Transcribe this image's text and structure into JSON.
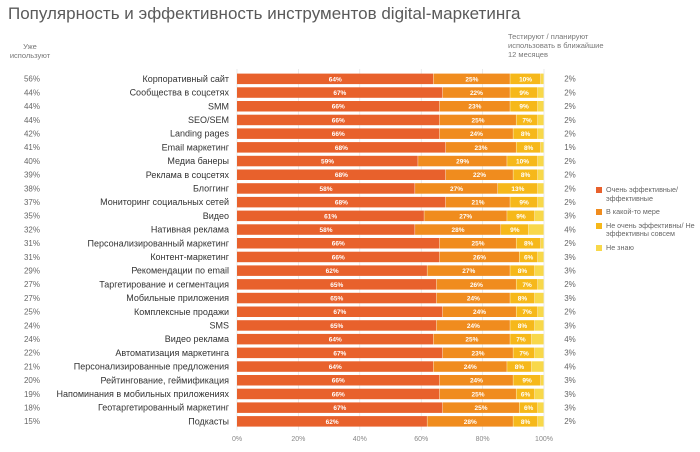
{
  "title": "Популярность и эффективность инструментов digital-маркетинга",
  "header_left": "Уже используют",
  "header_right": "Тестируют / планируют использовать в ближайшие 12 месяцев",
  "colors": {
    "very_effective": "#e8612c",
    "somewhat": "#f08c1e",
    "not_effective": "#f6b81a",
    "dont_know": "#f8d84a",
    "text": "#333333",
    "pct_text": "#ffffff",
    "grid": "#dddddd",
    "side_text": "#666666"
  },
  "chart_data": {
    "type": "bar",
    "orientation": "horizontal",
    "stacked": true,
    "title": "Популярность и эффективность инструментов digital-маркетинга",
    "xlim": [
      0,
      100
    ],
    "x_ticks": [
      "0%",
      "20%",
      "40%",
      "60%",
      "80%",
      "100%"
    ],
    "legend_position": "right",
    "categories": [
      "Корпоративный сайт",
      "Сообщества в соцсетях",
      "SMM",
      "SEO/SEM",
      "Landing pages",
      "Email маркетинг",
      "Медиа банеры",
      "Реклама в соцсетях",
      "Блоггинг",
      "Мониторинг социальных сетей",
      "Видео",
      "Нативная реклама",
      "Персонализированный маркетинг",
      "Контент-маркетинг",
      "Рекомендации по email",
      "Таргетирование и сегментация",
      "Мобильные приложения",
      "Комплексные продажи",
      "SMS",
      "Видео реклама",
      "Автоматизация маркетинга",
      "Персонализированные предложения",
      "Рейтингование, геймификация",
      "Напоминания в мобильных приложениях",
      "Геотаргетированный маркетинг",
      "Подкасты"
    ],
    "already_using": [
      "56%",
      "44%",
      "44%",
      "44%",
      "42%",
      "41%",
      "40%",
      "39%",
      "38%",
      "37%",
      "35%",
      "32%",
      "31%",
      "31%",
      "29%",
      "27%",
      "27%",
      "25%",
      "24%",
      "24%",
      "22%",
      "21%",
      "20%",
      "19%",
      "18%",
      "15%"
    ],
    "testing_planning": [
      "2%",
      "2%",
      "2%",
      "2%",
      "2%",
      "1%",
      "2%",
      "2%",
      "2%",
      "2%",
      "3%",
      "4%",
      "2%",
      "3%",
      "3%",
      "2%",
      "3%",
      "2%",
      "3%",
      "4%",
      "3%",
      "4%",
      "3%",
      "3%",
      "3%",
      "2%"
    ],
    "series": [
      {
        "name": "Очень эффективные/ эффективные",
        "values": [
          64,
          67,
          66,
          66,
          66,
          68,
          59,
          68,
          58,
          68,
          61,
          58,
          66,
          66,
          62,
          65,
          65,
          67,
          65,
          64,
          67,
          64,
          66,
          66,
          67,
          62
        ],
        "labels": [
          "64%",
          "67%",
          "66%",
          "66%",
          "66%",
          "68%",
          "59%",
          "68%",
          "58%",
          "68%",
          "61%",
          "58%",
          "66%",
          "66%",
          "62%",
          "65%",
          "65%",
          "67%",
          "65%",
          "64%",
          "67%",
          "64%",
          "66%",
          "66%",
          "67%",
          "62%"
        ]
      },
      {
        "name": "В какой-то мере",
        "values": [
          25,
          22,
          23,
          25,
          24,
          23,
          29,
          22,
          27,
          21,
          27,
          28,
          25,
          26,
          27,
          26,
          24,
          24,
          24,
          25,
          23,
          24,
          24,
          25,
          25,
          28
        ],
        "labels": [
          "25%",
          "22%",
          "23%",
          "25%",
          "24%",
          "23%",
          "29%",
          "22%",
          "27%",
          "21%",
          "27%",
          "28%",
          "25%",
          "26%",
          "27%",
          "26%",
          "24%",
          "24%",
          "24%",
          "25%",
          "23%",
          "24%",
          "24%",
          "25%",
          "25%",
          "28%"
        ]
      },
      {
        "name": "Не очень эффективны/ Не эффективны совсем",
        "values": [
          10,
          9,
          9,
          7,
          8,
          8,
          10,
          8,
          13,
          9,
          9,
          9,
          8,
          6,
          8,
          7,
          8,
          7,
          8,
          7,
          7,
          8,
          9,
          6,
          6,
          8
        ],
        "labels": [
          "10%",
          "9%",
          "9%",
          "7%",
          "8%",
          "8%",
          "10%",
          "8%",
          "13%",
          "9%",
          "9%",
          "9%",
          "8%",
          "6%",
          "8%",
          "7%",
          "8%",
          "7%",
          "8%",
          "7%",
          "7%",
          "8%",
          "9%",
          "6%",
          "6%",
          "8%"
        ]
      },
      {
        "name": "Не знаю",
        "values": [
          1,
          2,
          2,
          2,
          2,
          1,
          2,
          2,
          2,
          2,
          3,
          5,
          1,
          2,
          3,
          2,
          3,
          2,
          3,
          4,
          3,
          4,
          1,
          3,
          2,
          2
        ],
        "labels": []
      }
    ]
  }
}
